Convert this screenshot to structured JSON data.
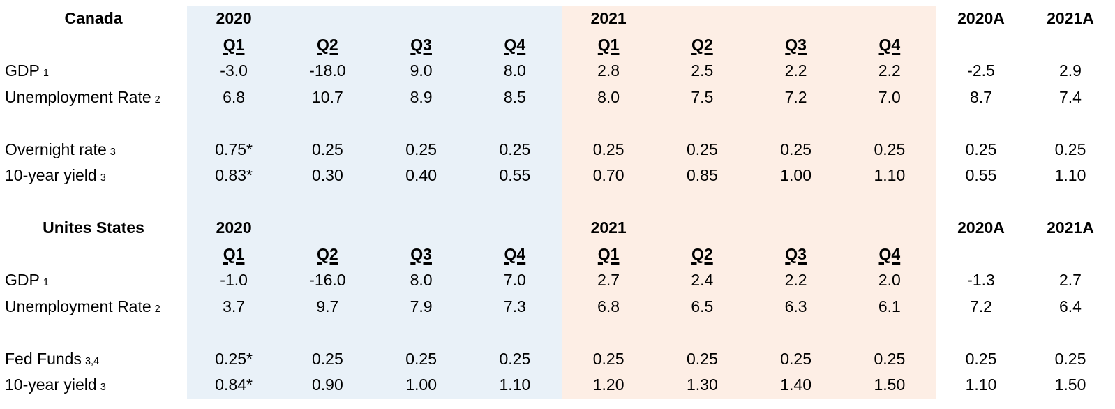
{
  "chart_data": {
    "type": "table",
    "year_2020_label": "2020",
    "year_2021_label": "2021",
    "annual_2020_label": "2020A",
    "annual_2021_label": "2021A",
    "quarter_headers": [
      "Q1",
      "Q2",
      "Q3",
      "Q4"
    ],
    "colors": {
      "fill_2020_band": "#e9f1f8",
      "fill_2021_band": "#fdeee5",
      "text": "#000000"
    },
    "sections": [
      {
        "title": "Canada",
        "rows": [
          {
            "label": "GDP",
            "footnote": "1",
            "y2020": [
              "-3.0",
              "-18.0",
              "9.0",
              "8.0"
            ],
            "y2021": [
              "2.8",
              "2.5",
              "2.2",
              "2.2"
            ],
            "annual": [
              "-2.5",
              "2.9"
            ]
          },
          {
            "label": "Unemployment Rate",
            "footnote": "2",
            "y2020": [
              "6.8",
              "10.7",
              "8.9",
              "8.5"
            ],
            "y2021": [
              "8.0",
              "7.5",
              "7.2",
              "7.0"
            ],
            "annual": [
              "8.7",
              "7.4"
            ]
          },
          {
            "label": "Overnight rate",
            "footnote": "3",
            "y2020": [
              "0.75*",
              "0.25",
              "0.25",
              "0.25"
            ],
            "y2021": [
              "0.25",
              "0.25",
              "0.25",
              "0.25"
            ],
            "annual": [
              "0.25",
              "0.25"
            ]
          },
          {
            "label": "10-year yield",
            "footnote": "3",
            "y2020": [
              "0.83*",
              "0.30",
              "0.40",
              "0.55"
            ],
            "y2021": [
              "0.70",
              "0.85",
              "1.00",
              "1.10"
            ],
            "annual": [
              "0.55",
              "1.10"
            ]
          }
        ]
      },
      {
        "title": "Unites States",
        "rows": [
          {
            "label": "GDP",
            "footnote": "1",
            "y2020": [
              "-1.0",
              "-16.0",
              "8.0",
              "7.0"
            ],
            "y2021": [
              "2.7",
              "2.4",
              "2.2",
              "2.0"
            ],
            "annual": [
              "-1.3",
              "2.7"
            ]
          },
          {
            "label": "Unemployment Rate",
            "footnote": "2",
            "y2020": [
              "3.7",
              "9.7",
              "7.9",
              "7.3"
            ],
            "y2021": [
              "6.8",
              "6.5",
              "6.3",
              "6.1"
            ],
            "annual": [
              "7.2",
              "6.4"
            ]
          },
          {
            "label": "Fed Funds",
            "footnote": "3,4",
            "y2020": [
              "0.25*",
              "0.25",
              "0.25",
              "0.25"
            ],
            "y2021": [
              "0.25",
              "0.25",
              "0.25",
              "0.25"
            ],
            "annual": [
              "0.25",
              "0.25"
            ]
          },
          {
            "label": "10-year yield",
            "footnote": "3",
            "y2020": [
              "0.84*",
              "0.90",
              "1.00",
              "1.10"
            ],
            "y2021": [
              "1.20",
              "1.30",
              "1.40",
              "1.50"
            ],
            "annual": [
              "1.10",
              "1.50"
            ]
          }
        ]
      }
    ]
  }
}
